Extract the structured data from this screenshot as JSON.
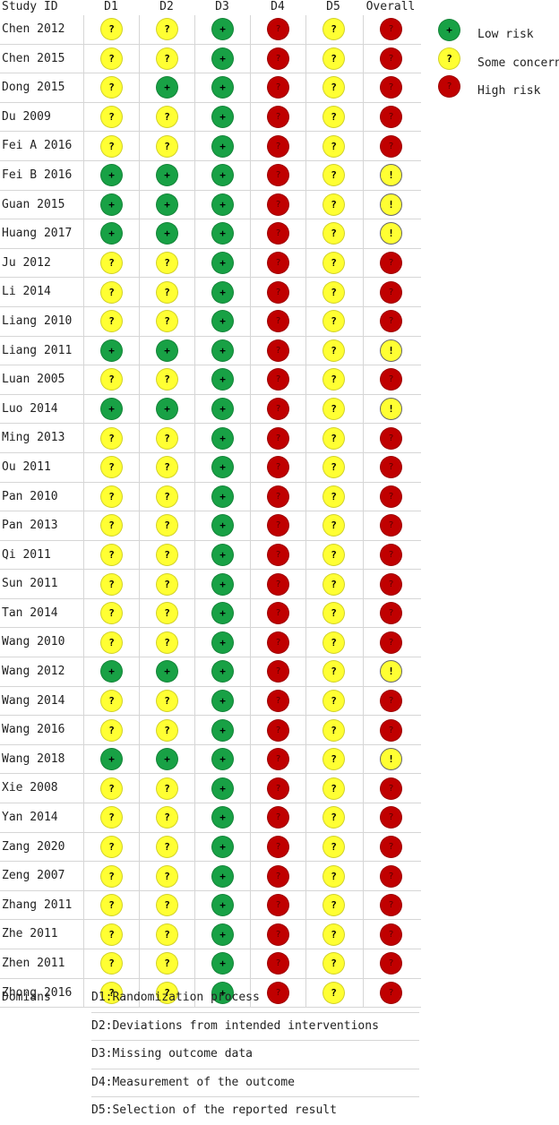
{
  "header": {
    "study_label": "Study ID",
    "domains": [
      "D1",
      "D2",
      "D3",
      "D4",
      "D5",
      "Overall"
    ]
  },
  "judgement_symbols": {
    "low": "+",
    "some": "?",
    "high": "?",
    "warn": "!"
  },
  "judgement_colors": {
    "low": "#18a145",
    "some": "#ffff33",
    "high": "#c00000"
  },
  "studies": [
    {
      "id": "Chen 2012",
      "j": [
        "some",
        "some",
        "low",
        "high",
        "some",
        "high"
      ]
    },
    {
      "id": "Chen 2015",
      "j": [
        "some",
        "some",
        "low",
        "high",
        "some",
        "high"
      ]
    },
    {
      "id": "Dong 2015",
      "j": [
        "some",
        "low",
        "low",
        "high",
        "some",
        "high"
      ]
    },
    {
      "id": "Du 2009",
      "j": [
        "some",
        "some",
        "low",
        "high",
        "some",
        "high"
      ]
    },
    {
      "id": "Fei A 2016",
      "j": [
        "some",
        "some",
        "low",
        "high",
        "some",
        "high"
      ]
    },
    {
      "id": "Fei B 2016",
      "j": [
        "low",
        "low",
        "low",
        "high",
        "some",
        "warn"
      ]
    },
    {
      "id": "Guan 2015",
      "j": [
        "low",
        "low",
        "low",
        "high",
        "some",
        "warn"
      ]
    },
    {
      "id": "Huang 2017",
      "j": [
        "low",
        "low",
        "low",
        "high",
        "some",
        "warn"
      ]
    },
    {
      "id": "Ju 2012",
      "j": [
        "some",
        "some",
        "low",
        "high",
        "some",
        "high"
      ]
    },
    {
      "id": "Li 2014",
      "j": [
        "some",
        "some",
        "low",
        "high",
        "some",
        "high"
      ]
    },
    {
      "id": "Liang 2010",
      "j": [
        "some",
        "some",
        "low",
        "high",
        "some",
        "high"
      ]
    },
    {
      "id": "Liang 2011",
      "j": [
        "low",
        "low",
        "low",
        "high",
        "some",
        "warn"
      ]
    },
    {
      "id": "Luan 2005",
      "j": [
        "some",
        "some",
        "low",
        "high",
        "some",
        "high"
      ]
    },
    {
      "id": "Luo 2014",
      "j": [
        "low",
        "low",
        "low",
        "high",
        "some",
        "warn"
      ]
    },
    {
      "id": "Ming 2013",
      "j": [
        "some",
        "some",
        "low",
        "high",
        "some",
        "high"
      ]
    },
    {
      "id": "Ou 2011",
      "j": [
        "some",
        "some",
        "low",
        "high",
        "some",
        "high"
      ]
    },
    {
      "id": "Pan 2010",
      "j": [
        "some",
        "some",
        "low",
        "high",
        "some",
        "high"
      ]
    },
    {
      "id": "Pan 2013",
      "j": [
        "some",
        "some",
        "low",
        "high",
        "some",
        "high"
      ]
    },
    {
      "id": "Qi 2011",
      "j": [
        "some",
        "some",
        "low",
        "high",
        "some",
        "high"
      ]
    },
    {
      "id": "Sun 2011",
      "j": [
        "some",
        "some",
        "low",
        "high",
        "some",
        "high"
      ]
    },
    {
      "id": "Tan 2014",
      "j": [
        "some",
        "some",
        "low",
        "high",
        "some",
        "high"
      ]
    },
    {
      "id": "Wang 2010",
      "j": [
        "some",
        "some",
        "low",
        "high",
        "some",
        "high"
      ]
    },
    {
      "id": "Wang 2012",
      "j": [
        "low",
        "low",
        "low",
        "high",
        "some",
        "warn"
      ]
    },
    {
      "id": "Wang 2014",
      "j": [
        "some",
        "some",
        "low",
        "high",
        "some",
        "high"
      ]
    },
    {
      "id": "Wang 2016",
      "j": [
        "some",
        "some",
        "low",
        "high",
        "some",
        "high"
      ]
    },
    {
      "id": "Wang 2018",
      "j": [
        "low",
        "low",
        "low",
        "high",
        "some",
        "warn"
      ]
    },
    {
      "id": "Xie 2008",
      "j": [
        "some",
        "some",
        "low",
        "high",
        "some",
        "high"
      ]
    },
    {
      "id": "Yan 2014",
      "j": [
        "some",
        "some",
        "low",
        "high",
        "some",
        "high"
      ]
    },
    {
      "id": "Zang 2020",
      "j": [
        "some",
        "some",
        "low",
        "high",
        "some",
        "high"
      ]
    },
    {
      "id": "Zeng 2007",
      "j": [
        "some",
        "some",
        "low",
        "high",
        "some",
        "high"
      ]
    },
    {
      "id": "Zhang 2011",
      "j": [
        "some",
        "some",
        "low",
        "high",
        "some",
        "high"
      ]
    },
    {
      "id": "Zhe 2011",
      "j": [
        "some",
        "some",
        "low",
        "high",
        "some",
        "high"
      ]
    },
    {
      "id": "Zhen 2011",
      "j": [
        "some",
        "some",
        "low",
        "high",
        "some",
        "high"
      ]
    },
    {
      "id": "Zhong 2016",
      "j": [
        "some",
        "some",
        "low",
        "high",
        "some",
        "high"
      ]
    }
  ],
  "legend": [
    {
      "key": "low",
      "label": "Low risk"
    },
    {
      "key": "some",
      "label": "Some concerns"
    },
    {
      "key": "high",
      "label": "High risk"
    }
  ],
  "domains_section": {
    "label": "Domians",
    "items": [
      "D1:Randomization process",
      "D2:Deviations from intended interventions",
      "D3:Missing outcome data",
      "D4:Measurement of the outcome",
      "D5:Selection of the reported result"
    ]
  }
}
